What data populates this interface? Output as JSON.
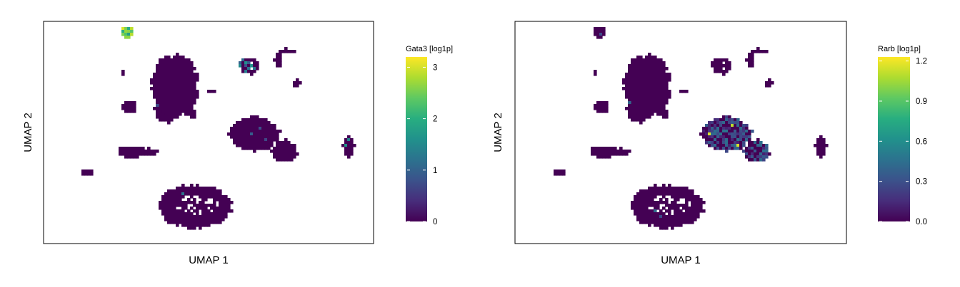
{
  "chart_data": [
    {
      "type": "scatter",
      "subtype": "hexbin-embedding",
      "xlabel": "UMAP 1",
      "ylabel": "UMAP 2",
      "colorbar": {
        "title": "Gata3 [log1p]",
        "min": 0,
        "max": 3.2,
        "ticks": [
          0,
          1,
          2,
          3
        ],
        "tick_labels": [
          "0",
          "1",
          "2",
          "3"
        ],
        "colormap": "viridis"
      },
      "highlights": [
        {
          "cluster": "top-left-small",
          "value": 3.0
        },
        {
          "cluster": "upper-middle-ring",
          "value": 1.2
        },
        {
          "cluster": "far-right",
          "value": 1.5
        }
      ]
    },
    {
      "type": "scatter",
      "subtype": "hexbin-embedding",
      "xlabel": "UMAP 1",
      "ylabel": "UMAP 2",
      "colorbar": {
        "title": "Rarb [log1p]",
        "min": 0,
        "max": 1.23,
        "ticks": [
          0.0,
          0.3,
          0.6,
          0.9,
          1.2
        ],
        "tick_labels": [
          "0.0",
          "0.3",
          "0.6",
          "0.9",
          "1.2"
        ],
        "colormap": "viridis"
      },
      "highlights": [
        {
          "cluster": "center-right-large",
          "value": 0.35
        },
        {
          "cluster": "center-right-tail",
          "value": 0.35
        }
      ]
    }
  ]
}
